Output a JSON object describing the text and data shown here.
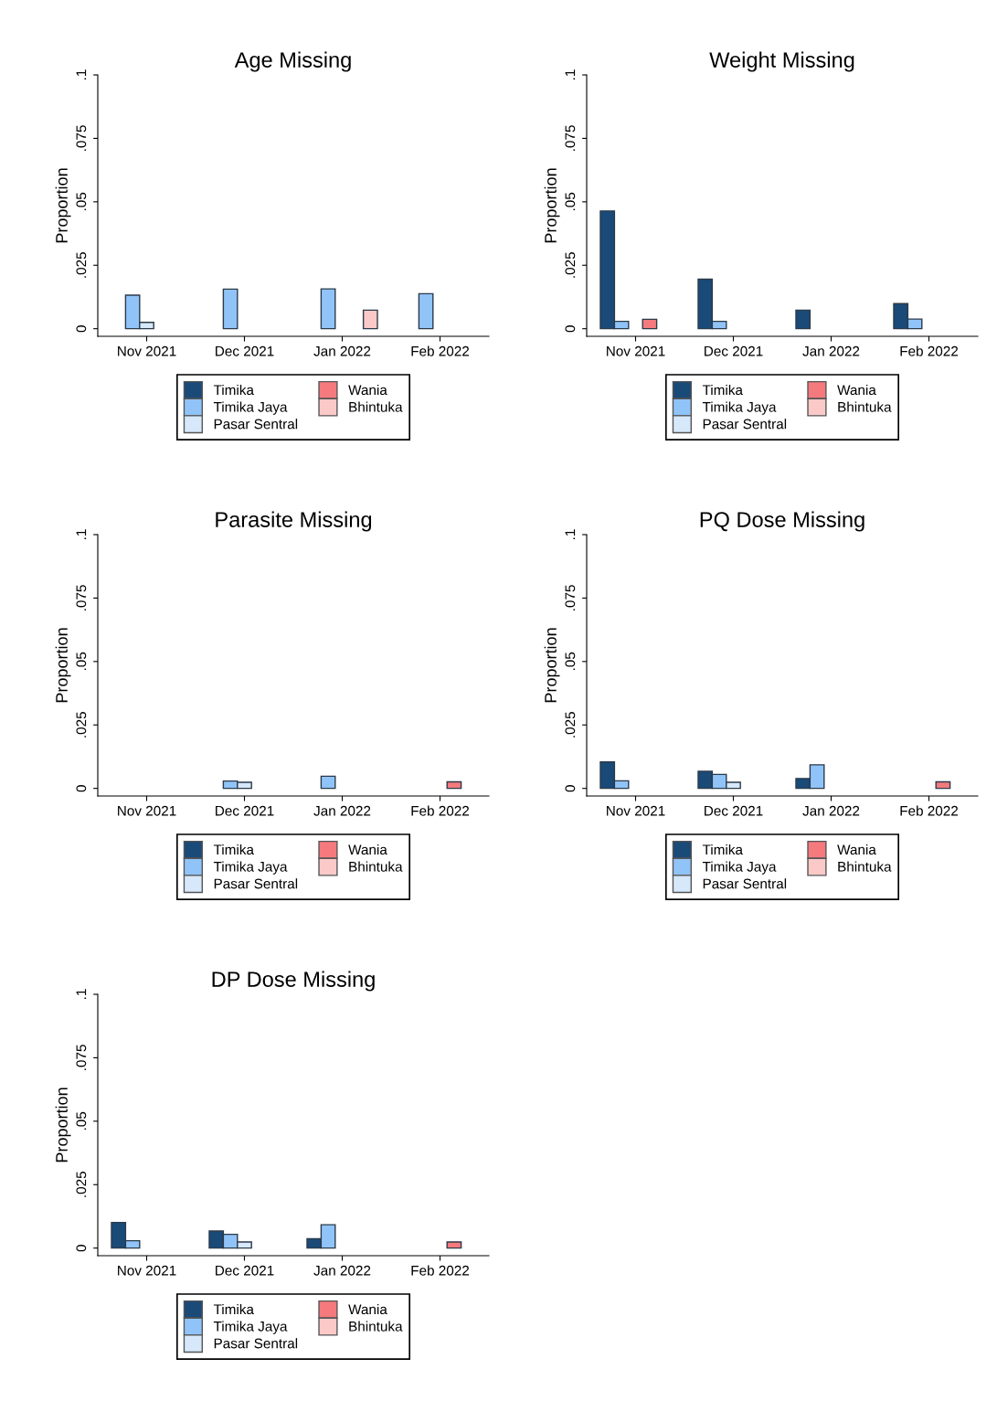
{
  "chart_data": [
    {
      "type": "bar",
      "title": "Age Missing",
      "ylabel": "Proportion",
      "categories": [
        "Nov 2021",
        "Dec 2021",
        "Jan 2022",
        "Feb 2022"
      ],
      "ylim": [
        -0.003,
        0.1
      ],
      "yticks": [
        0,
        {
          "value": 0.025,
          "label": ".025"
        },
        {
          "value": 0.05,
          "label": ".05"
        },
        {
          "value": 0.075,
          "label": ".075"
        },
        {
          "value": 0.1,
          "label": ".1"
        }
      ],
      "legend": "bottom",
      "grid": false,
      "series": [
        {
          "name": "Timika",
          "color": "#1a4a78",
          "values": [
            null,
            null,
            null,
            null
          ]
        },
        {
          "name": "Timika Jaya",
          "color": "#90c4f8",
          "values": [
            0.0132,
            0.0156,
            0.0157,
            0.0138
          ]
        },
        {
          "name": "Pasar Sentral",
          "color": "#d6e8fa",
          "values": [
            0.0025,
            null,
            null,
            null
          ]
        },
        {
          "name": "Wania",
          "color": "#f47a7e",
          "values": [
            null,
            null,
            null,
            null
          ]
        },
        {
          "name": "Bhintuka",
          "color": "#fbc9c8",
          "values": [
            null,
            null,
            0.0073,
            null
          ]
        }
      ]
    },
    {
      "type": "bar",
      "title": "Weight Missing",
      "ylabel": "Proportion",
      "categories": [
        "Nov 2021",
        "Dec 2021",
        "Jan 2022",
        "Feb 2022"
      ],
      "ylim": [
        -0.003,
        0.1
      ],
      "yticks": [
        0,
        {
          "value": 0.025,
          "label": ".025"
        },
        {
          "value": 0.05,
          "label": ".05"
        },
        {
          "value": 0.075,
          "label": ".075"
        },
        {
          "value": 0.1,
          "label": ".1"
        }
      ],
      "legend": "bottom",
      "grid": false,
      "series": [
        {
          "name": "Timika",
          "color": "#1a4a78",
          "values": [
            0.0464,
            0.0195,
            0.0073,
            0.0099
          ]
        },
        {
          "name": "Timika Jaya",
          "color": "#90c4f8",
          "values": [
            0.0029,
            0.0029,
            null,
            0.0038
          ]
        },
        {
          "name": "Pasar Sentral",
          "color": "#d6e8fa",
          "values": [
            null,
            null,
            null,
            null
          ]
        },
        {
          "name": "Wania",
          "color": "#f47a7e",
          "values": [
            0.0037,
            null,
            null,
            null
          ]
        },
        {
          "name": "Bhintuka",
          "color": "#fbc9c8",
          "values": [
            null,
            null,
            null,
            null
          ]
        }
      ]
    },
    {
      "type": "bar",
      "title": "Parasite Missing",
      "ylabel": "Proportion",
      "categories": [
        "Nov 2021",
        "Dec 2021",
        "Jan 2022",
        "Feb 2022"
      ],
      "ylim": [
        -0.003,
        0.1
      ],
      "yticks": [
        0,
        {
          "value": 0.025,
          "label": ".025"
        },
        {
          "value": 0.05,
          "label": ".05"
        },
        {
          "value": 0.075,
          "label": ".075"
        },
        {
          "value": 0.1,
          "label": ".1"
        }
      ],
      "legend": "bottom",
      "grid": false,
      "series": [
        {
          "name": "Timika",
          "color": "#1a4a78",
          "values": [
            null,
            null,
            null,
            null
          ]
        },
        {
          "name": "Timika Jaya",
          "color": "#90c4f8",
          "values": [
            null,
            0.0029,
            0.0048,
            null
          ]
        },
        {
          "name": "Pasar Sentral",
          "color": "#d6e8fa",
          "values": [
            null,
            0.0024,
            null,
            null
          ]
        },
        {
          "name": "Wania",
          "color": "#f47a7e",
          "values": [
            null,
            null,
            null,
            0.0026
          ]
        },
        {
          "name": "Bhintuka",
          "color": "#fbc9c8",
          "values": [
            null,
            null,
            null,
            null
          ]
        }
      ]
    },
    {
      "type": "bar",
      "title": "PQ Dose Missing",
      "ylabel": "Proportion",
      "categories": [
        "Nov 2021",
        "Dec 2021",
        "Jan 2022",
        "Feb 2022"
      ],
      "ylim": [
        -0.003,
        0.1
      ],
      "yticks": [
        0,
        {
          "value": 0.025,
          "label": ".025"
        },
        {
          "value": 0.05,
          "label": ".05"
        },
        {
          "value": 0.075,
          "label": ".075"
        },
        {
          "value": 0.1,
          "label": ".1"
        }
      ],
      "legend": "bottom",
      "grid": false,
      "series": [
        {
          "name": "Timika",
          "color": "#1a4a78",
          "values": [
            0.0104,
            0.0067,
            0.0039,
            null
          ]
        },
        {
          "name": "Timika Jaya",
          "color": "#90c4f8",
          "values": [
            0.003,
            0.0055,
            0.0093,
            null
          ]
        },
        {
          "name": "Pasar Sentral",
          "color": "#d6e8fa",
          "values": [
            null,
            0.0024,
            null,
            null
          ]
        },
        {
          "name": "Wania",
          "color": "#f47a7e",
          "values": [
            null,
            null,
            null,
            0.0026
          ]
        },
        {
          "name": "Bhintuka",
          "color": "#fbc9c8",
          "values": [
            null,
            null,
            null,
            null
          ]
        }
      ]
    },
    {
      "type": "bar",
      "title": "DP Dose Missing",
      "ylabel": "Proportion",
      "categories": [
        "Nov 2021",
        "Dec 2021",
        "Jan 2022",
        "Feb 2022"
      ],
      "ylim": [
        -0.003,
        0.1
      ],
      "yticks": [
        0,
        {
          "value": 0.025,
          "label": ".025"
        },
        {
          "value": 0.05,
          "label": ".05"
        },
        {
          "value": 0.075,
          "label": ".075"
        },
        {
          "value": 0.1,
          "label": ".1"
        }
      ],
      "legend": "bottom",
      "grid": false,
      "series": [
        {
          "name": "Timika",
          "color": "#1a4a78",
          "values": [
            0.0101,
            0.0067,
            0.0037,
            null
          ]
        },
        {
          "name": "Timika Jaya",
          "color": "#90c4f8",
          "values": [
            0.0029,
            0.0054,
            0.0092,
            null
          ]
        },
        {
          "name": "Pasar Sentral",
          "color": "#d6e8fa",
          "values": [
            null,
            0.0024,
            null,
            null
          ]
        },
        {
          "name": "Wania",
          "color": "#f47a7e",
          "values": [
            null,
            null,
            null,
            0.0024
          ]
        },
        {
          "name": "Bhintuka",
          "color": "#fbc9c8",
          "values": [
            null,
            null,
            null,
            null
          ]
        }
      ]
    }
  ]
}
